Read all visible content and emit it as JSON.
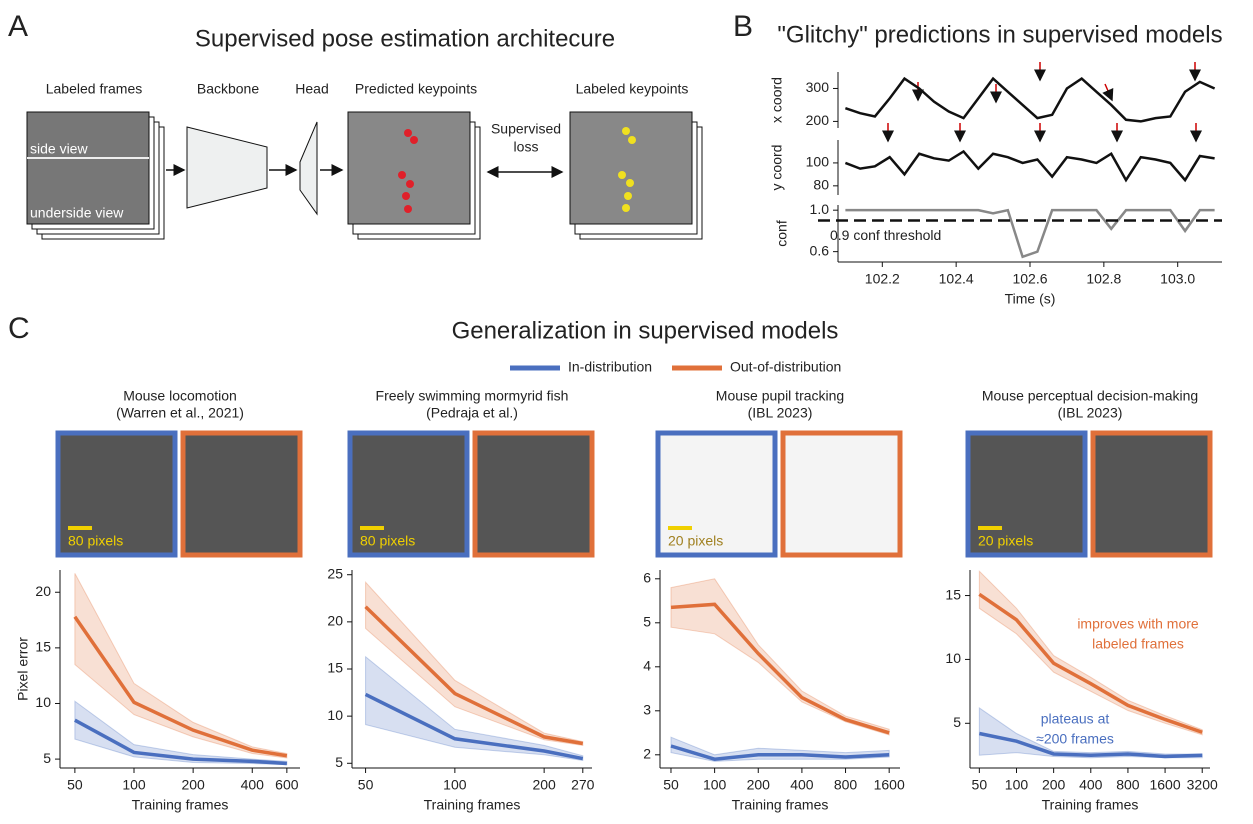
{
  "panel_labels": [
    "A",
    "B",
    "C"
  ],
  "panel_a": {
    "title": "Supervised pose estimation architecure",
    "labeled_frames": "Labeled frames",
    "backbone": "Backbone",
    "head": "Head",
    "predicted": "Predicted keypoints",
    "loss": [
      "Supervised",
      "loss"
    ],
    "labeled_keypoints": "Labeled keypoints",
    "side_view": "side view",
    "underside_view": "underside view"
  },
  "panel_b_title": "\"Glitchy\" predictions in supervised models",
  "panel_c_title": "Generalization in supervised models",
  "chart_data": [
    {
      "type": "line",
      "ylabel": "x coord",
      "x": [
        102.1,
        102.14,
        102.18,
        102.22,
        102.26,
        102.3,
        102.34,
        102.38,
        102.42,
        102.46,
        102.5,
        102.54,
        102.58,
        102.62,
        102.66,
        102.7,
        102.74,
        102.78,
        102.82,
        102.86,
        102.9,
        102.94,
        102.98,
        103.02,
        103.06,
        103.1
      ],
      "xlim": [
        102.08,
        103.12
      ],
      "ylim": [
        180,
        350
      ],
      "yticks": [
        200,
        300
      ],
      "series": [
        {
          "color": "#111111",
          "values": [
            240,
            225,
            215,
            270,
            330,
            300,
            260,
            230,
            210,
            270,
            330,
            290,
            250,
            210,
            220,
            300,
            330,
            290,
            250,
            205,
            200,
            210,
            215,
            290,
            320,
            300
          ]
        }
      ]
    },
    {
      "type": "line",
      "ylabel": "y coord",
      "x": [
        102.1,
        102.14,
        102.18,
        102.22,
        102.26,
        102.3,
        102.34,
        102.38,
        102.42,
        102.46,
        102.5,
        102.54,
        102.58,
        102.62,
        102.66,
        102.7,
        102.74,
        102.78,
        102.82,
        102.86,
        102.9,
        102.94,
        102.98,
        103.02,
        103.06,
        103.1
      ],
      "xlim": [
        102.08,
        103.12
      ],
      "ylim": [
        72,
        120
      ],
      "yticks": [
        80,
        100
      ],
      "series": [
        {
          "color": "#111111",
          "values": [
            100,
            95,
            97,
            105,
            90,
            108,
            104,
            102,
            110,
            95,
            108,
            105,
            100,
            103,
            88,
            105,
            103,
            100,
            108,
            85,
            105,
            103,
            100,
            85,
            106,
            104
          ]
        }
      ]
    },
    {
      "type": "line",
      "ylabel": "conf",
      "xlabel": "Time (s)",
      "x": [
        102.1,
        102.14,
        102.18,
        102.22,
        102.26,
        102.3,
        102.34,
        102.38,
        102.42,
        102.46,
        102.5,
        102.54,
        102.58,
        102.62,
        102.66,
        102.7,
        102.74,
        102.78,
        102.82,
        102.86,
        102.9,
        102.94,
        102.98,
        103.02,
        103.06,
        103.1
      ],
      "xlim": [
        102.08,
        103.12
      ],
      "ylim": [
        0.5,
        1.05
      ],
      "yticks": [
        0.6,
        {
          "value": 1,
          "label": "1.0"
        }
      ],
      "xticks": [
        102.2,
        102.4,
        102.6,
        102.8,
        {
          "value": 103,
          "label": "103.0"
        }
      ],
      "threshold": {
        "value": 0.9,
        "label": "0.9 conf threshold"
      },
      "series": [
        {
          "color": "#888888",
          "values": [
            1,
            1,
            1,
            1,
            1,
            1,
            1,
            1,
            1,
            1,
            0.97,
            1,
            0.55,
            0.6,
            1,
            1,
            1,
            1,
            0.82,
            1,
            1,
            1,
            1,
            0.8,
            1,
            1
          ]
        }
      ]
    },
    {
      "type": "line",
      "title": "Mouse locomotion",
      "subtitle": "(Warren et al., 2021)",
      "scale_bar_label": "80 pixels",
      "ylabel": "Pixel error",
      "xlabel": "Training frames",
      "xscale": "log",
      "x": [
        50,
        100,
        200,
        400,
        600
      ],
      "xlim": [
        42,
        700
      ],
      "xticks": [
        50,
        100,
        200,
        400,
        600
      ],
      "ylim": [
        4.2,
        22
      ],
      "yticks": [
        5,
        10,
        15,
        20
      ],
      "series": [
        {
          "name": "In-distribution",
          "color": "#4a6fbf",
          "values": [
            8.5,
            5.6,
            5.0,
            4.8,
            4.6
          ],
          "lower": [
            6.8,
            5.2,
            4.7,
            4.6,
            4.5
          ],
          "upper": [
            10.2,
            6.3,
            5.4,
            5.0,
            4.8
          ]
        },
        {
          "name": "Out-of-distribution",
          "color": "#e0703a",
          "values": [
            17.8,
            10.1,
            7.6,
            5.8,
            5.3
          ],
          "lower": [
            13.5,
            9.0,
            7.0,
            5.5,
            5.1
          ],
          "upper": [
            21.7,
            11.8,
            8.3,
            6.1,
            5.5
          ]
        }
      ]
    },
    {
      "type": "line",
      "title": "Freely swimming mormyrid fish",
      "subtitle": "(Pedraja et al.)",
      "scale_bar_label": "80 pixels",
      "xlabel": "Training frames",
      "xscale": "log",
      "x": [
        50,
        100,
        200,
        270
      ],
      "xlim": [
        45,
        290
      ],
      "xticks": [
        50,
        100,
        200,
        270
      ],
      "ylim": [
        4.5,
        25.5
      ],
      "yticks": [
        5,
        10,
        15,
        20,
        25
      ],
      "series": [
        {
          "name": "In-distribution",
          "color": "#4a6fbf",
          "values": [
            12.3,
            7.6,
            6.3,
            5.5
          ],
          "lower": [
            9.1,
            6.7,
            5.9,
            5.3
          ],
          "upper": [
            16.3,
            8.6,
            6.9,
            5.8
          ]
        },
        {
          "name": "Out-of-distribution",
          "color": "#e0703a",
          "values": [
            21.6,
            12.4,
            7.8,
            7.1
          ],
          "lower": [
            19.3,
            11.0,
            7.5,
            6.9
          ],
          "upper": [
            24.2,
            13.8,
            8.2,
            7.3
          ]
        }
      ]
    },
    {
      "type": "line",
      "title": "Mouse pupil tracking",
      "subtitle": "(IBL 2023)",
      "scale_bar_label": "20 pixels",
      "xlabel": "Training frames",
      "xscale": "log",
      "x": [
        50,
        100,
        200,
        400,
        800,
        1600
      ],
      "xlim": [
        42,
        1900
      ],
      "xticks": [
        50,
        100,
        200,
        400,
        800,
        1600
      ],
      "ylim": [
        1.7,
        6.2
      ],
      "yticks": [
        2,
        3,
        4,
        5,
        6
      ],
      "series": [
        {
          "name": "In-distribution",
          "color": "#4a6fbf",
          "values": [
            2.2,
            1.9,
            2.0,
            2.0,
            1.95,
            2.0
          ],
          "lower": [
            2.05,
            1.85,
            1.9,
            1.9,
            1.9,
            1.95
          ],
          "upper": [
            2.4,
            2.0,
            2.15,
            2.1,
            2.05,
            2.1
          ]
        },
        {
          "name": "Out-of-distribution",
          "color": "#e0703a",
          "values": [
            5.35,
            5.42,
            4.3,
            3.3,
            2.8,
            2.5
          ],
          "lower": [
            4.9,
            4.75,
            4.1,
            3.2,
            2.75,
            2.45
          ],
          "upper": [
            5.8,
            6.0,
            4.5,
            3.45,
            2.88,
            2.58
          ]
        }
      ]
    },
    {
      "type": "line",
      "title": "Mouse perceptual decision-making",
      "subtitle": "(IBL 2023)",
      "scale_bar_label": "20 pixels",
      "xlabel": "Training frames",
      "xscale": "log",
      "x": [
        50,
        100,
        200,
        400,
        800,
        1600,
        3200
      ],
      "xlim": [
        42,
        3700
      ],
      "xticks": [
        50,
        100,
        200,
        400,
        800,
        1600,
        3200
      ],
      "ylim": [
        1.5,
        17
      ],
      "yticks": [
        5,
        10,
        15
      ],
      "annotations": [
        {
          "lines": [
            "improves with more",
            "labeled frames"
          ],
          "color": "#e0703a"
        },
        {
          "lines": [
            "plateaus at",
            "≈200 frames"
          ],
          "color": "#4a6fbf"
        }
      ],
      "series": [
        {
          "name": "In-distribution",
          "color": "#4a6fbf",
          "values": [
            4.2,
            3.6,
            2.6,
            2.5,
            2.6,
            2.4,
            2.5
          ],
          "lower": [
            2.5,
            2.7,
            2.4,
            2.3,
            2.4,
            2.3,
            2.3
          ],
          "upper": [
            6.2,
            4.2,
            2.8,
            2.7,
            2.8,
            2.6,
            2.6
          ]
        },
        {
          "name": "Out-of-distribution",
          "color": "#e0703a",
          "values": [
            15.1,
            13.1,
            9.7,
            8.1,
            6.4,
            5.3,
            4.3
          ],
          "lower": [
            14.0,
            12.0,
            9.0,
            7.5,
            6.0,
            5.0,
            4.1
          ],
          "upper": [
            16.9,
            14.0,
            10.3,
            8.6,
            6.8,
            5.6,
            4.5
          ]
        }
      ]
    }
  ]
}
